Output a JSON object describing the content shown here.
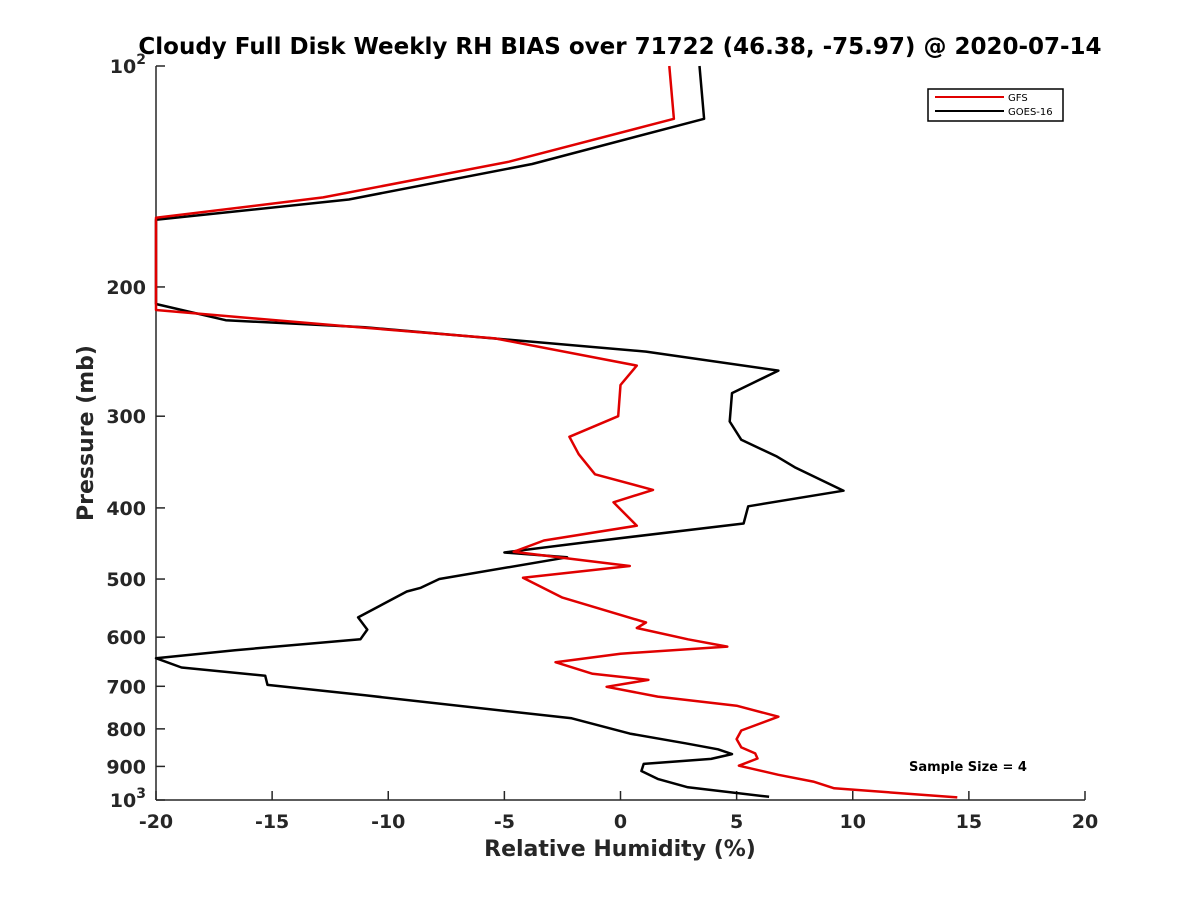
{
  "chart_data": {
    "type": "line",
    "title": "Cloudy Full Disk Weekly RH BIAS over 71722 (46.38, -75.97) @ 2020-07-14",
    "xlabel": "Relative Humidity (%)",
    "ylabel": "Pressure (mb)",
    "xlim": [
      -20,
      20
    ],
    "ylim": [
      100,
      1000
    ],
    "yscale": "log",
    "y_reversed": true,
    "xticks": [
      -20,
      -15,
      -10,
      -5,
      0,
      5,
      10,
      15,
      20
    ],
    "yticks": [
      {
        "value": 100,
        "label": "10",
        "sup": "2"
      },
      {
        "value": 200,
        "label": "200"
      },
      {
        "value": 300,
        "label": "300"
      },
      {
        "value": 400,
        "label": "400"
      },
      {
        "value": 500,
        "label": "500"
      },
      {
        "value": 600,
        "label": "600"
      },
      {
        "value": 700,
        "label": "700"
      },
      {
        "value": 800,
        "label": "800"
      },
      {
        "value": 900,
        "label": "900"
      },
      {
        "value": 1000,
        "label": "10",
        "sup": "3"
      }
    ],
    "legend_position": "top-right",
    "annotation": "Sample Size = 4",
    "series": [
      {
        "name": "GFS",
        "color": "#e00000",
        "points": [
          [
            2.1,
            100
          ],
          [
            2.3,
            118
          ],
          [
            -4.8,
            135
          ],
          [
            -12.8,
            151
          ],
          [
            -20,
            161
          ],
          [
            -20,
            215
          ],
          [
            -12,
            226
          ],
          [
            -5.4,
            235
          ],
          [
            0.7,
            256
          ],
          [
            0,
            272
          ],
          [
            -0.1,
            300
          ],
          [
            -2.2,
            320
          ],
          [
            -1.8,
            338
          ],
          [
            -1.1,
            360
          ],
          [
            1.4,
            378
          ],
          [
            -0.3,
            393
          ],
          [
            0.7,
            423
          ],
          [
            -3.3,
            443
          ],
          [
            -4.6,
            459
          ],
          [
            -2.2,
            469
          ],
          [
            0.4,
            480
          ],
          [
            -4.2,
            498
          ],
          [
            -2.5,
            530
          ],
          [
            1.1,
            573
          ],
          [
            0.7,
            583
          ],
          [
            2.9,
            604
          ],
          [
            4.6,
            618
          ],
          [
            0,
            632
          ],
          [
            -2.8,
            649
          ],
          [
            -1.2,
            673
          ],
          [
            1.2,
            686
          ],
          [
            -0.6,
            701
          ],
          [
            1.6,
            723
          ],
          [
            5,
            744
          ],
          [
            6.8,
            770
          ],
          [
            5.2,
            804
          ],
          [
            5,
            826
          ],
          [
            5.2,
            848
          ],
          [
            5.8,
            864
          ],
          [
            5.9,
            878
          ],
          [
            5.1,
            898
          ],
          [
            6.8,
            924
          ],
          [
            8.3,
            944
          ],
          [
            9.2,
            964
          ],
          [
            14.5,
            992
          ]
        ]
      },
      {
        "name": "GOES-16",
        "color": "#000000",
        "points": [
          [
            3.4,
            100
          ],
          [
            3.6,
            118
          ],
          [
            -3.8,
            136
          ],
          [
            -11.7,
            152
          ],
          [
            -20,
            162
          ],
          [
            -20,
            211
          ],
          [
            -17,
            222
          ],
          [
            -11,
            227
          ],
          [
            1.1,
            245
          ],
          [
            6.8,
            260
          ],
          [
            4.8,
            279
          ],
          [
            4.7,
            305
          ],
          [
            5.2,
            323
          ],
          [
            6.7,
            340
          ],
          [
            7.5,
            352
          ],
          [
            9.6,
            379
          ],
          [
            5.5,
            398
          ],
          [
            5.3,
            420
          ],
          [
            -1.6,
            446
          ],
          [
            -5,
            460
          ],
          [
            -2.3,
            467
          ],
          [
            -7.8,
            500
          ],
          [
            -8.6,
            514
          ],
          [
            -9.2,
            520
          ],
          [
            -11.3,
            564
          ],
          [
            -10.9,
            586
          ],
          [
            -11.2,
            604
          ],
          [
            -16.6,
            625
          ],
          [
            -20,
            641
          ],
          [
            -18.9,
            660
          ],
          [
            -15.3,
            677
          ],
          [
            -15.2,
            697
          ],
          [
            -11,
            720
          ],
          [
            -2.1,
            774
          ],
          [
            0.4,
            812
          ],
          [
            2.8,
            837
          ],
          [
            4.2,
            853
          ],
          [
            4.8,
            866
          ],
          [
            3.9,
            879
          ],
          [
            1,
            893
          ],
          [
            0.9,
            913
          ],
          [
            1.6,
            936
          ],
          [
            2.9,
            961
          ],
          [
            6.4,
            990
          ]
        ]
      }
    ]
  }
}
